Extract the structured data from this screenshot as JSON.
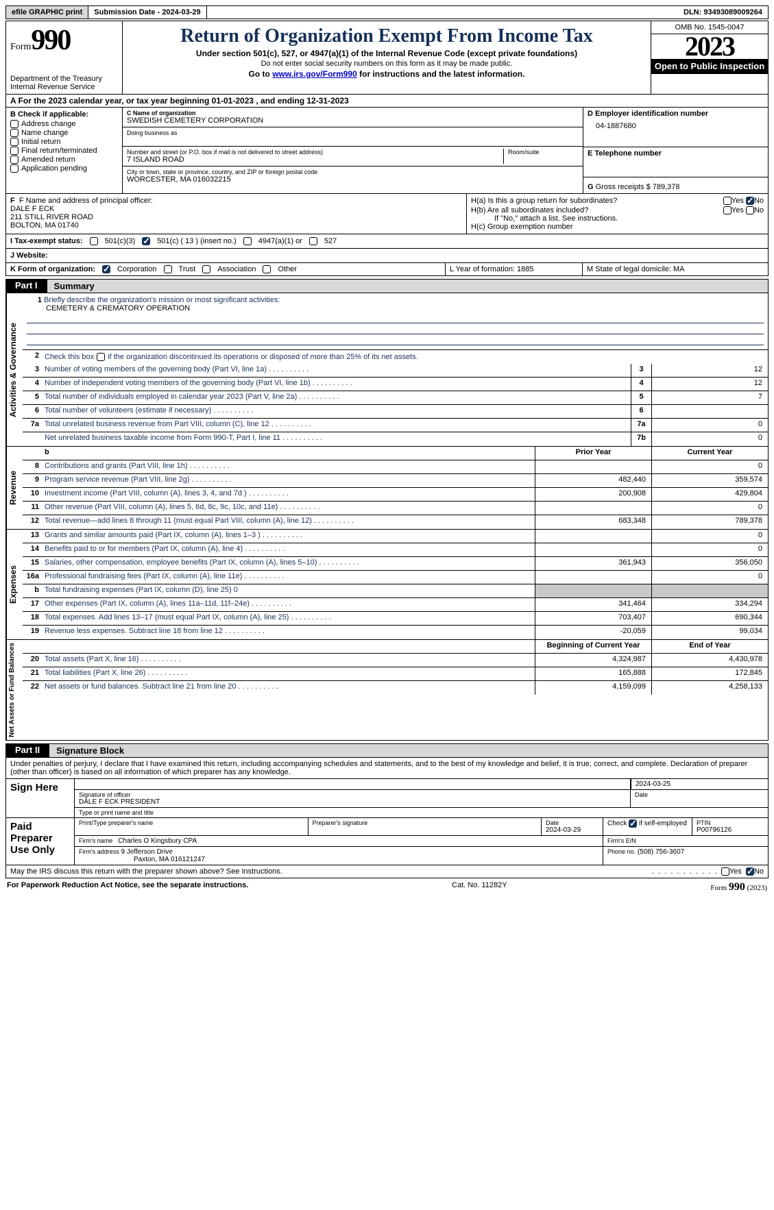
{
  "topbar": {
    "efile": "efile GRAPHIC print",
    "submission": "Submission Date - 2024-03-29",
    "dln": "DLN: 93493089009264"
  },
  "header": {
    "form_word": "Form",
    "form_num": "990",
    "dept": "Department of the Treasury",
    "irs": "Internal Revenue Service",
    "title": "Return of Organization Exempt From Income Tax",
    "sub1": "Under section 501(c), 527, or 4947(a)(1) of the Internal Revenue Code (except private foundations)",
    "sub2": "Do not enter social security numbers on this form as it may be made public.",
    "sub3_pre": "Go to ",
    "sub3_link": "www.irs.gov/Form990",
    "sub3_post": " for instructions and the latest information.",
    "omb": "OMB No. 1545-0047",
    "year": "2023",
    "inspect": "Open to Public Inspection"
  },
  "rowA": "A For the 2023 calendar year, or tax year beginning 01-01-2023    , and ending 12-31-2023",
  "boxB": {
    "title": "B Check if applicable:",
    "items": [
      "Address change",
      "Name change",
      "Initial return",
      "Final return/terminated",
      "Amended return",
      "Application pending"
    ]
  },
  "boxC": {
    "name_lbl": "C Name of organization",
    "name": "SWEDISH CEMETERY CORPORATION",
    "dba_lbl": "Doing business as",
    "dba": "",
    "addr_lbl": "Number and street (or P.O. box if mail is not delivered to street address)",
    "addr": "7 ISLAND ROAD",
    "room_lbl": "Room/suite",
    "city_lbl": "City or town, state or province, country, and ZIP or foreign postal code",
    "city": "WORCESTER, MA  016032215"
  },
  "boxD": {
    "lbl": "D Employer identification number",
    "val": "04-1887680"
  },
  "boxE": {
    "lbl": "E Telephone number",
    "val": ""
  },
  "boxG": {
    "lbl": "G",
    "text": "Gross receipts $ 789,378"
  },
  "boxF": {
    "lbl": "F  Name and address of principal officer:",
    "name": "DALE F ECK",
    "addr1": "211 STILL RIVER ROAD",
    "addr2": "BOLTON, MA  01740"
  },
  "boxH": {
    "a": "H(a)  Is this a group return for subordinates?",
    "b": "H(b)  Are all subordinates included?",
    "b2": "If \"No,\" attach a list. See instructions.",
    "c": "H(c)  Group exemption number"
  },
  "taxExempt": {
    "lbl": "I   Tax-exempt status:",
    "c3": "501(c)(3)",
    "c": "501(c) ( 13 ) (insert no.)",
    "a1": "4947(a)(1) or",
    "s527": "527"
  },
  "rowJ": "J   Website:",
  "rowK": {
    "lbl": "K Form of organization:",
    "corp": "Corporation",
    "trust": "Trust",
    "assoc": "Association",
    "other": "Other"
  },
  "rowL": "L Year of formation: 1885",
  "rowM": "M State of legal domicile: MA",
  "part1": {
    "tag": "Part I",
    "title": "Summary"
  },
  "vlabels": {
    "gov": "Activities & Governance",
    "rev": "Revenue",
    "exp": "Expenses",
    "net": "Net Assets or Fund Balances"
  },
  "summary": {
    "line1_lbl": "Briefly describe the organization's mission or most significant activities:",
    "line1_val": "CEMETERY & CREMATORY OPERATION",
    "line2": "Check this box        if the organization discontinued its operations or disposed of more than 25% of its net assets.",
    "lines_gov": [
      {
        "n": "3",
        "d": "Number of voting members of the governing body (Part VI, line 1a)",
        "box": "3",
        "v": "12"
      },
      {
        "n": "4",
        "d": "Number of independent voting members of the governing body (Part VI, line 1b)",
        "box": "4",
        "v": "12"
      },
      {
        "n": "5",
        "d": "Total number of individuals employed in calendar year 2023 (Part V, line 2a)",
        "box": "5",
        "v": "7"
      },
      {
        "n": "6",
        "d": "Total number of volunteers (estimate if necessary)",
        "box": "6",
        "v": ""
      },
      {
        "n": "7a",
        "d": "Total unrelated business revenue from Part VIII, column (C), line 12",
        "box": "7a",
        "v": "0"
      },
      {
        "n": "",
        "d": "Net unrelated business taxable income from Form 990-T, Part I, line 11",
        "box": "7b",
        "v": "0"
      }
    ],
    "col_py": "Prior Year",
    "col_cy": "Current Year",
    "lines_rev": [
      {
        "n": "8",
        "d": "Contributions and grants (Part VIII, line 1h)",
        "py": "",
        "cy": "0"
      },
      {
        "n": "9",
        "d": "Program service revenue (Part VIII, line 2g)",
        "py": "482,440",
        "cy": "359,574"
      },
      {
        "n": "10",
        "d": "Investment income (Part VIII, column (A), lines 3, 4, and 7d )",
        "py": "200,908",
        "cy": "429,804"
      },
      {
        "n": "11",
        "d": "Other revenue (Part VIII, column (A), lines 5, 6d, 8c, 9c, 10c, and 11e)",
        "py": "",
        "cy": "0"
      },
      {
        "n": "12",
        "d": "Total revenue—add lines 8 through 11 (must equal Part VIII, column (A), line 12)",
        "py": "683,348",
        "cy": "789,378"
      }
    ],
    "lines_exp": [
      {
        "n": "13",
        "d": "Grants and similar amounts paid (Part IX, column (A), lines 1–3 )",
        "py": "",
        "cy": "0"
      },
      {
        "n": "14",
        "d": "Benefits paid to or for members (Part IX, column (A), line 4)",
        "py": "",
        "cy": "0"
      },
      {
        "n": "15",
        "d": "Salaries, other compensation, employee benefits (Part IX, column (A), lines 5–10)",
        "py": "361,943",
        "cy": "356,050"
      },
      {
        "n": "16a",
        "d": "Professional fundraising fees (Part IX, column (A), line 11e)",
        "py": "",
        "cy": "0"
      },
      {
        "n": "b",
        "d": "Total fundraising expenses (Part IX, column (D), line 25) 0",
        "py": "SHADE",
        "cy": "SHADE"
      },
      {
        "n": "17",
        "d": "Other expenses (Part IX, column (A), lines 11a–11d, 11f–24e)",
        "py": "341,464",
        "cy": "334,294"
      },
      {
        "n": "18",
        "d": "Total expenses. Add lines 13–17 (must equal Part IX, column (A), line 25)",
        "py": "703,407",
        "cy": "690,344"
      },
      {
        "n": "19",
        "d": "Revenue less expenses. Subtract line 18 from line 12",
        "py": "-20,059",
        "cy": "99,034"
      }
    ],
    "col_boy": "Beginning of Current Year",
    "col_eoy": "End of Year",
    "lines_net": [
      {
        "n": "20",
        "d": "Total assets (Part X, line 16)",
        "py": "4,324,987",
        "cy": "4,430,978"
      },
      {
        "n": "21",
        "d": "Total liabilities (Part X, line 26)",
        "py": "165,888",
        "cy": "172,845"
      },
      {
        "n": "22",
        "d": "Net assets or fund balances. Subtract line 21 from line 20",
        "py": "4,159,099",
        "cy": "4,258,133"
      }
    ]
  },
  "part2": {
    "tag": "Part II",
    "title": "Signature Block"
  },
  "perjury": "Under penalties of perjury, I declare that I have examined this return, including accompanying schedules and statements, and to the best of my knowledge and belief, it is true, correct, and complete. Declaration of preparer (other than officer) is based on all information of which preparer has any knowledge.",
  "sign": {
    "here": "Sign Here",
    "sig_lbl": "Signature of officer",
    "date_lbl": "Date",
    "date": "2024-03-25",
    "name": "DALE F ECK  PRESIDENT",
    "name_lbl": "Type or print name and title"
  },
  "prep": {
    "here": "Paid Preparer Use Only",
    "pname_lbl": "Print/Type preparer's name",
    "psig_lbl": "Preparer's signature",
    "pdate_lbl": "Date",
    "pdate": "2024-03-29",
    "self_lbl": "Check         if self-employed",
    "ptin_lbl": "PTIN",
    "ptin": "P00796126",
    "firm_lbl": "Firm's name    ",
    "firm": "Charles O Kingsbury CPA",
    "ein_lbl": "Firm's EIN  ",
    "addr_lbl": "Firm's address",
    "addr1": "9 Jefferson Drive",
    "addr2": "Paxton, MA  016121247",
    "phone_lbl": "Phone no.",
    "phone": "(508) 756-3607"
  },
  "discuss": "May the IRS discuss this return with the preparer shown above? See Instructions.",
  "footer": {
    "left": "For Paperwork Reduction Act Notice, see the separate instructions.",
    "mid": "Cat. No. 11282Y",
    "right_pre": "Form ",
    "right_num": "990",
    "right_post": " (2023)"
  },
  "yn": {
    "yes": "Yes",
    "no": "No"
  }
}
